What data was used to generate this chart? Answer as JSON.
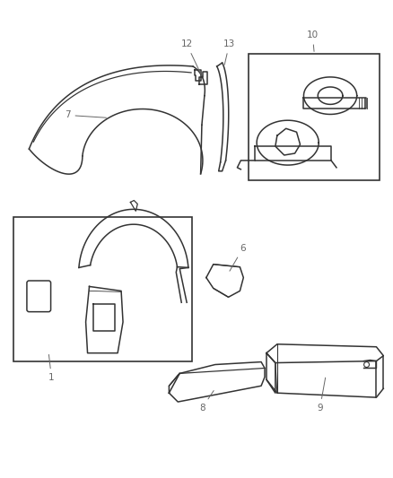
{
  "background_color": "#ffffff",
  "line_color": "#333333",
  "label_color": "#666666",
  "fig_width": 4.38,
  "fig_height": 5.33,
  "dpi": 100
}
